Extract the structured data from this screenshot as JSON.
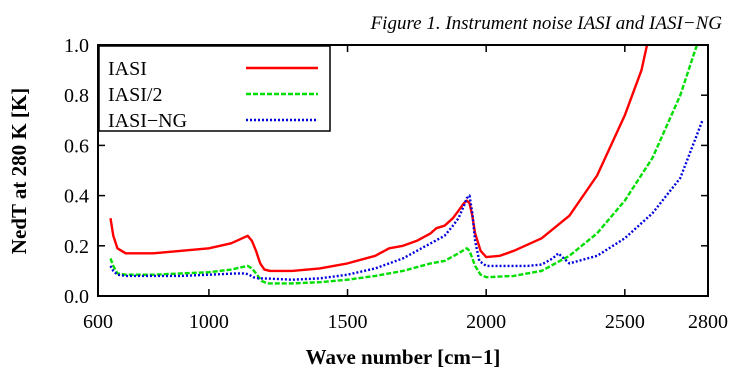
{
  "chart_data": {
    "type": "line",
    "title": "Figure 1. Instrument noise IASI and IASI−NG",
    "xlabel": "Wave number [cm−1]",
    "ylabel": "NedT at 280 K [K]",
    "xlim": [
      600,
      2800
    ],
    "ylim": [
      0.0,
      1.0
    ],
    "xticks": [
      "600",
      "1000",
      "1500",
      "2000",
      "2500",
      "2800"
    ],
    "yticks": [
      "0.0",
      "0.2",
      "0.4",
      "0.6",
      "0.8",
      "1.0"
    ],
    "grid": false,
    "legend_position": "top-left",
    "series": [
      {
        "name": "IASI",
        "color": "#ff0000",
        "dash": "solid",
        "x": [
          645,
          655,
          670,
          700,
          800,
          900,
          1000,
          1080,
          1120,
          1140,
          1155,
          1170,
          1185,
          1200,
          1220,
          1300,
          1400,
          1500,
          1600,
          1650,
          1700,
          1750,
          1800,
          1820,
          1850,
          1880,
          1900,
          1920,
          1930,
          1940,
          1950,
          1960,
          1980,
          2000,
          2050,
          2100,
          2200,
          2300,
          2400,
          2500,
          2560,
          2580
        ],
        "y": [
          0.31,
          0.24,
          0.19,
          0.17,
          0.17,
          0.18,
          0.19,
          0.21,
          0.23,
          0.24,
          0.22,
          0.18,
          0.13,
          0.105,
          0.1,
          0.1,
          0.11,
          0.13,
          0.16,
          0.19,
          0.2,
          0.22,
          0.25,
          0.27,
          0.28,
          0.31,
          0.34,
          0.37,
          0.38,
          0.37,
          0.32,
          0.25,
          0.18,
          0.155,
          0.16,
          0.18,
          0.23,
          0.32,
          0.48,
          0.72,
          0.9,
          1.0
        ]
      },
      {
        "name": "IASI/2",
        "color": "#00dd00",
        "dash": "dashed",
        "x": [
          645,
          655,
          670,
          700,
          800,
          900,
          1000,
          1080,
          1120,
          1140,
          1155,
          1170,
          1190,
          1210,
          1250,
          1300,
          1400,
          1500,
          1600,
          1700,
          1800,
          1850,
          1900,
          1930,
          1940,
          1960,
          1980,
          2000,
          2100,
          2200,
          2300,
          2400,
          2500,
          2600,
          2700,
          2760
        ],
        "y": [
          0.15,
          0.12,
          0.09,
          0.085,
          0.085,
          0.09,
          0.095,
          0.105,
          0.115,
          0.12,
          0.11,
          0.09,
          0.06,
          0.05,
          0.05,
          0.05,
          0.055,
          0.065,
          0.08,
          0.1,
          0.13,
          0.14,
          0.17,
          0.19,
          0.18,
          0.12,
          0.085,
          0.075,
          0.08,
          0.1,
          0.16,
          0.25,
          0.38,
          0.55,
          0.8,
          1.0
        ]
      },
      {
        "name": "IASI−NG",
        "color": "#0000dd",
        "dash": "dotted",
        "x": [
          645,
          655,
          670,
          700,
          800,
          900,
          1000,
          1100,
          1130,
          1145,
          1160,
          1180,
          1200,
          1300,
          1400,
          1500,
          1600,
          1700,
          1800,
          1850,
          1880,
          1900,
          1920,
          1930,
          1940,
          1950,
          1960,
          1975,
          2000,
          2100,
          2150,
          2200,
          2240,
          2260,
          2280,
          2300,
          2400,
          2500,
          2600,
          2700,
          2780
        ],
        "y": [
          0.12,
          0.1,
          0.085,
          0.08,
          0.08,
          0.08,
          0.085,
          0.09,
          0.09,
          0.085,
          0.075,
          0.07,
          0.07,
          0.065,
          0.07,
          0.085,
          0.11,
          0.15,
          0.21,
          0.24,
          0.28,
          0.31,
          0.36,
          0.39,
          0.4,
          0.33,
          0.22,
          0.14,
          0.12,
          0.12,
          0.12,
          0.125,
          0.15,
          0.17,
          0.15,
          0.13,
          0.16,
          0.23,
          0.33,
          0.47,
          0.7
        ]
      }
    ]
  }
}
